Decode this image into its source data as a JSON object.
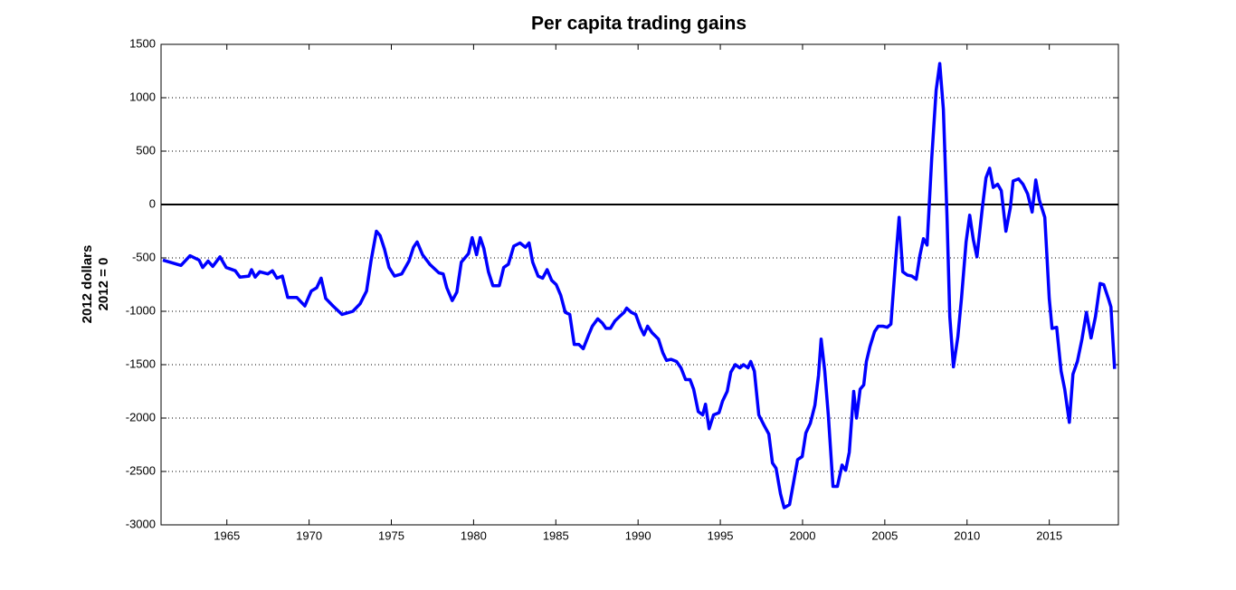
{
  "chart_data": {
    "type": "line",
    "title": "Per capita trading gains",
    "ylabel": [
      "2012 dollars",
      "2012 = 0"
    ],
    "xlim": [
      1961,
      2019.2
    ],
    "xticks": [
      1965,
      1970,
      1975,
      1980,
      1985,
      1990,
      1995,
      2000,
      2005,
      2010,
      2015
    ],
    "ylim": [
      -3000,
      1500
    ],
    "yticks": [
      -3000,
      -2500,
      -2000,
      -1500,
      -1000,
      -500,
      0,
      500,
      1000,
      1500
    ],
    "grid": true,
    "hline": 0,
    "series": [
      {
        "color": "#0000ff",
        "x": [
          1961.11,
          1962.21,
          1962.76,
          1963.31,
          1963.53,
          1963.86,
          1964.14,
          1964.58,
          1964.96,
          1965.51,
          1965.79,
          1966.34,
          1966.5,
          1966.72,
          1967.0,
          1967.49,
          1967.77,
          1968.04,
          1968.37,
          1968.7,
          1969.25,
          1969.74,
          1970.13,
          1970.46,
          1970.73,
          1971.01,
          1971.45,
          1972.0,
          1972.66,
          1973.1,
          1973.49,
          1973.76,
          1974.09,
          1974.31,
          1974.59,
          1974.86,
          1975.19,
          1975.63,
          1976.07,
          1976.35,
          1976.57,
          1976.9,
          1977.34,
          1977.89,
          1978.15,
          1978.37,
          1978.7,
          1978.98,
          1979.25,
          1979.69,
          1979.91,
          1980.18,
          1980.4,
          1980.62,
          1980.9,
          1981.17,
          1981.56,
          1981.83,
          1982.11,
          1982.44,
          1982.82,
          1983.15,
          1983.37,
          1983.59,
          1983.92,
          1984.2,
          1984.47,
          1984.75,
          1985.02,
          1985.3,
          1985.57,
          1985.85,
          1986.12,
          1986.4,
          1986.67,
          1987.0,
          1987.22,
          1987.55,
          1987.83,
          1988.05,
          1988.32,
          1988.6,
          1988.87,
          1989.15,
          1989.31,
          1989.59,
          1989.86,
          1990.14,
          1990.36,
          1990.58,
          1990.85,
          1991.24,
          1991.51,
          1991.73,
          1992.01,
          1992.34,
          1992.61,
          1992.89,
          1993.16,
          1993.38,
          1993.66,
          1993.93,
          1994.1,
          1994.32,
          1994.59,
          1994.92,
          1995.14,
          1995.42,
          1995.64,
          1995.91,
          1996.19,
          1996.41,
          1996.68,
          1996.85,
          1997.07,
          1997.34,
          1997.67,
          1997.95,
          1998.17,
          1998.39,
          1998.66,
          1998.88,
          1999.21,
          1999.48,
          1999.7,
          1999.98,
          2000.2,
          2000.47,
          2000.75,
          2000.97,
          2001.13,
          2001.35,
          2001.57,
          2001.85,
          2002.12,
          2002.4,
          2002.62,
          2002.84,
          2003.11,
          2003.28,
          2003.5,
          2003.72,
          2003.88,
          2004.1,
          2004.38,
          2004.6,
          2004.88,
          2005.15,
          2005.37,
          2005.65,
          2005.87,
          2006.09,
          2006.36,
          2006.64,
          2006.91,
          2007.13,
          2007.35,
          2007.57,
          2007.85,
          2008.12,
          2008.34,
          2008.56,
          2008.78,
          2008.95,
          2009.17,
          2009.44,
          2009.66,
          2009.94,
          2010.16,
          2010.38,
          2010.6,
          2010.93,
          2011.15,
          2011.37,
          2011.59,
          2011.86,
          2012.08,
          2012.36,
          2012.63,
          2012.8,
          2013.13,
          2013.4,
          2013.68,
          2013.96,
          2014.18,
          2014.4,
          2014.73,
          2015.0,
          2015.17,
          2015.45,
          2015.72,
          2015.94,
          2016.22,
          2016.44,
          2016.71,
          2016.99,
          2017.26,
          2017.54,
          2017.81,
          2018.09,
          2018.31,
          2018.59,
          2018.75,
          2018.97
        ],
        "values": [
          -520,
          -570,
          -480,
          -520,
          -590,
          -530,
          -580,
          -490,
          -590,
          -620,
          -680,
          -670,
          -610,
          -680,
          -630,
          -650,
          -620,
          -690,
          -670,
          -870,
          -870,
          -950,
          -810,
          -780,
          -690,
          -880,
          -950,
          -1030,
          -1000,
          -930,
          -810,
          -530,
          -250,
          -290,
          -420,
          -590,
          -670,
          -650,
          -530,
          -400,
          -350,
          -470,
          -560,
          -640,
          -650,
          -780,
          -900,
          -820,
          -540,
          -460,
          -310,
          -470,
          -310,
          -410,
          -630,
          -760,
          -760,
          -590,
          -560,
          -390,
          -360,
          -400,
          -360,
          -540,
          -670,
          -690,
          -610,
          -710,
          -750,
          -850,
          -1010,
          -1030,
          -1310,
          -1310,
          -1350,
          -1220,
          -1140,
          -1070,
          -1110,
          -1160,
          -1160,
          -1090,
          -1050,
          -1010,
          -970,
          -1010,
          -1030,
          -1150,
          -1220,
          -1140,
          -1200,
          -1260,
          -1390,
          -1460,
          -1450,
          -1470,
          -1530,
          -1640,
          -1640,
          -1730,
          -1940,
          -1970,
          -1870,
          -2100,
          -1970,
          -1950,
          -1840,
          -1750,
          -1570,
          -1500,
          -1530,
          -1500,
          -1530,
          -1470,
          -1560,
          -1970,
          -2070,
          -2150,
          -2420,
          -2470,
          -2710,
          -2840,
          -2810,
          -2580,
          -2390,
          -2360,
          -2140,
          -2050,
          -1880,
          -1600,
          -1260,
          -1560,
          -1980,
          -2640,
          -2640,
          -2440,
          -2490,
          -2320,
          -1750,
          -2000,
          -1730,
          -1690,
          -1470,
          -1330,
          -1190,
          -1140,
          -1140,
          -1150,
          -1120,
          -540,
          -120,
          -630,
          -660,
          -670,
          -700,
          -480,
          -320,
          -380,
          430,
          1070,
          1320,
          890,
          -110,
          -1050,
          -1520,
          -1240,
          -880,
          -350,
          -100,
          -330,
          -490,
          -30,
          250,
          340,
          160,
          190,
          130,
          -250,
          -30,
          220,
          240,
          190,
          100,
          -70,
          230,
          40,
          -120,
          -880,
          -1160,
          -1150,
          -1560,
          -1730,
          -2040,
          -1590,
          -1470,
          -1260,
          -1010,
          -1250,
          -1050,
          -740,
          -750,
          -880,
          -960,
          -1540
        ]
      }
    ]
  }
}
